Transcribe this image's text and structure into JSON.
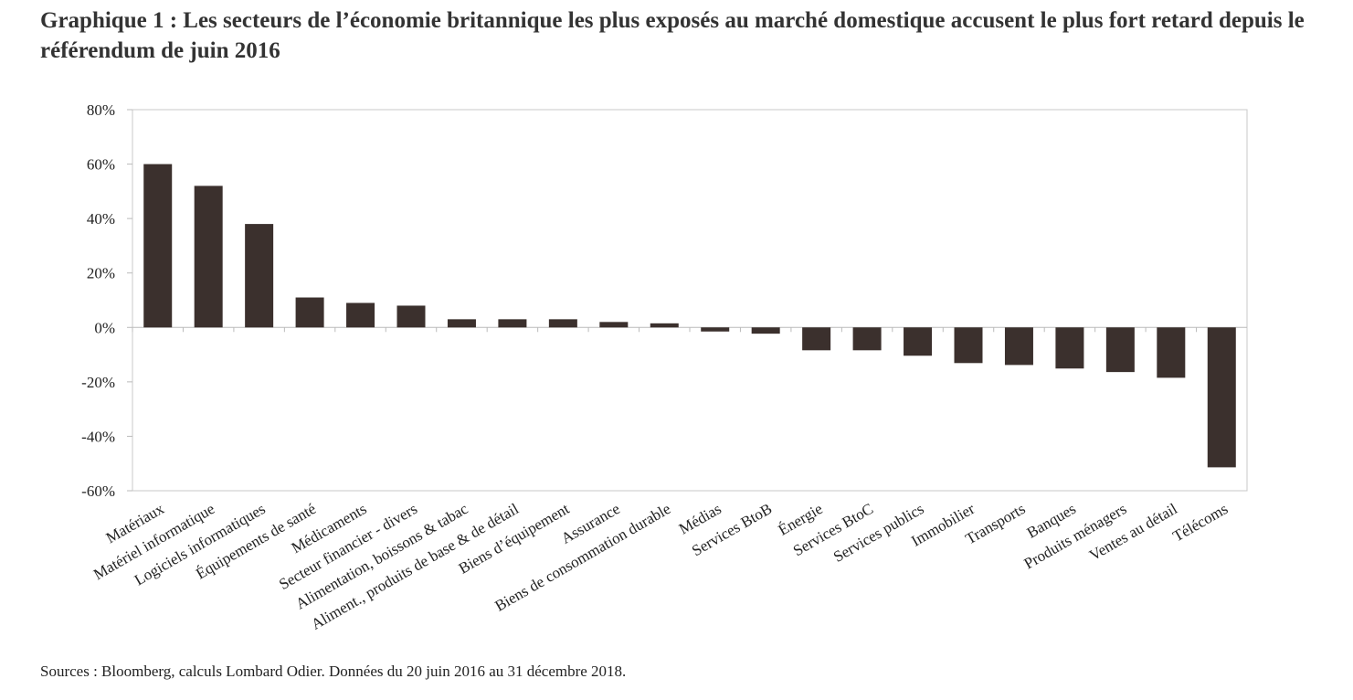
{
  "chart_data": {
    "type": "bar",
    "title": "Graphique 1 : Les secteurs de l’économie britannique les plus exposés au marché domestique accusent le plus fort retard depuis le référendum de juin 2016",
    "source": "Sources : Bloomberg, calculs Lombard Odier. Données du 20 juin 2016 au 31 décembre 2018.",
    "categories": [
      "Matériaux",
      "Matériel informatique",
      "Logiciels informatiques",
      "Équipements de santé",
      "Médicaments",
      "Secteur financier - divers",
      "Alimentation, boissons & tabac",
      "Aliment., produits de base & de détail",
      "Biens d’équipement",
      "Assurance",
      "Biens de consommation durable",
      "Médias",
      "Services BtoB",
      "Énergie",
      "Services BtoC",
      "Services publics",
      "Immobilier",
      "Transports",
      "Banques",
      "Produits ménagers",
      "Ventes au détail",
      "Télécoms"
    ],
    "values": [
      60,
      52,
      38,
      11,
      9,
      8,
      3,
      3,
      3,
      2,
      1.5,
      -1.5,
      -2.3,
      -8.4,
      -8.4,
      -10.4,
      -13.1,
      -13.8,
      -15.1,
      -16.4,
      -18.5,
      -51.4
    ],
    "color": "#3b302d",
    "ylim": [
      -60,
      80
    ],
    "yticks": [
      {
        "value": -60,
        "label": "-60%"
      },
      {
        "value": -40,
        "label": "-40%"
      },
      {
        "value": -20,
        "label": "-20%"
      },
      {
        "value": 0,
        "label": "0%"
      },
      {
        "value": 20,
        "label": "20%"
      },
      {
        "value": 40,
        "label": "40%"
      },
      {
        "value": 60,
        "label": "60%"
      },
      {
        "value": 80,
        "label": "80%"
      }
    ],
    "grid": false
  }
}
